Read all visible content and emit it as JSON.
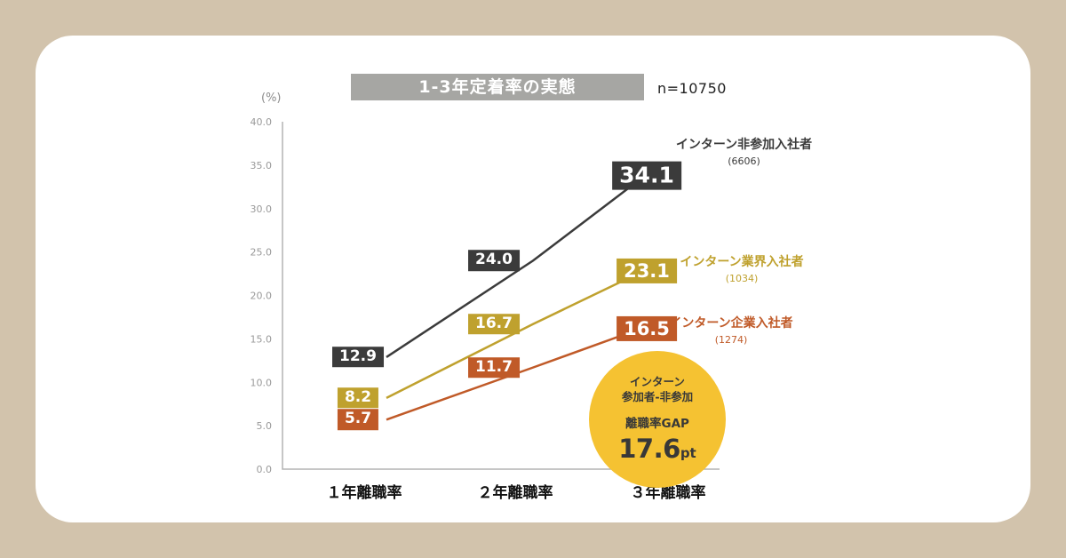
{
  "page": {
    "n_label": "n=10750",
    "unit_label": "(%)"
  },
  "colors": {
    "page_background": "#d2c3ac",
    "card_background": "#ffffff",
    "title_bar_background": "#a6a6a3",
    "axis": "#b3b3b3",
    "tick_text": "#9a9a9a"
  },
  "chart_data": {
    "type": "line",
    "title": "1-3年定着率の実態",
    "categories": [
      "１年離職率",
      "２年離職率",
      "３年離職率"
    ],
    "series": [
      {
        "name": "インターン非参加入社者",
        "count": "(6606)",
        "color": "#3b3b3b",
        "values": [
          12.9,
          24.0,
          34.1
        ]
      },
      {
        "name": "インターン業界入社者",
        "count": "(1034)",
        "color": "#bfa12e",
        "values": [
          8.2,
          16.7,
          23.1
        ]
      },
      {
        "name": "インターン企業入社者",
        "count": "(1274)",
        "color": "#c05a28",
        "values": [
          5.7,
          11.7,
          16.5
        ]
      }
    ],
    "ylabel": "(%)",
    "ylim": [
      0,
      40
    ],
    "yticks": [
      0,
      5,
      10,
      15,
      20,
      25,
      30,
      35,
      40
    ],
    "grid": false,
    "legend_position": "right-of-last-points",
    "annotation": {
      "line1": "インターン",
      "line2": "参加者-非参加",
      "gap_label": "離職率GAP",
      "value": "17.6",
      "unit": "pt",
      "circle_color": "#f5c232"
    }
  }
}
